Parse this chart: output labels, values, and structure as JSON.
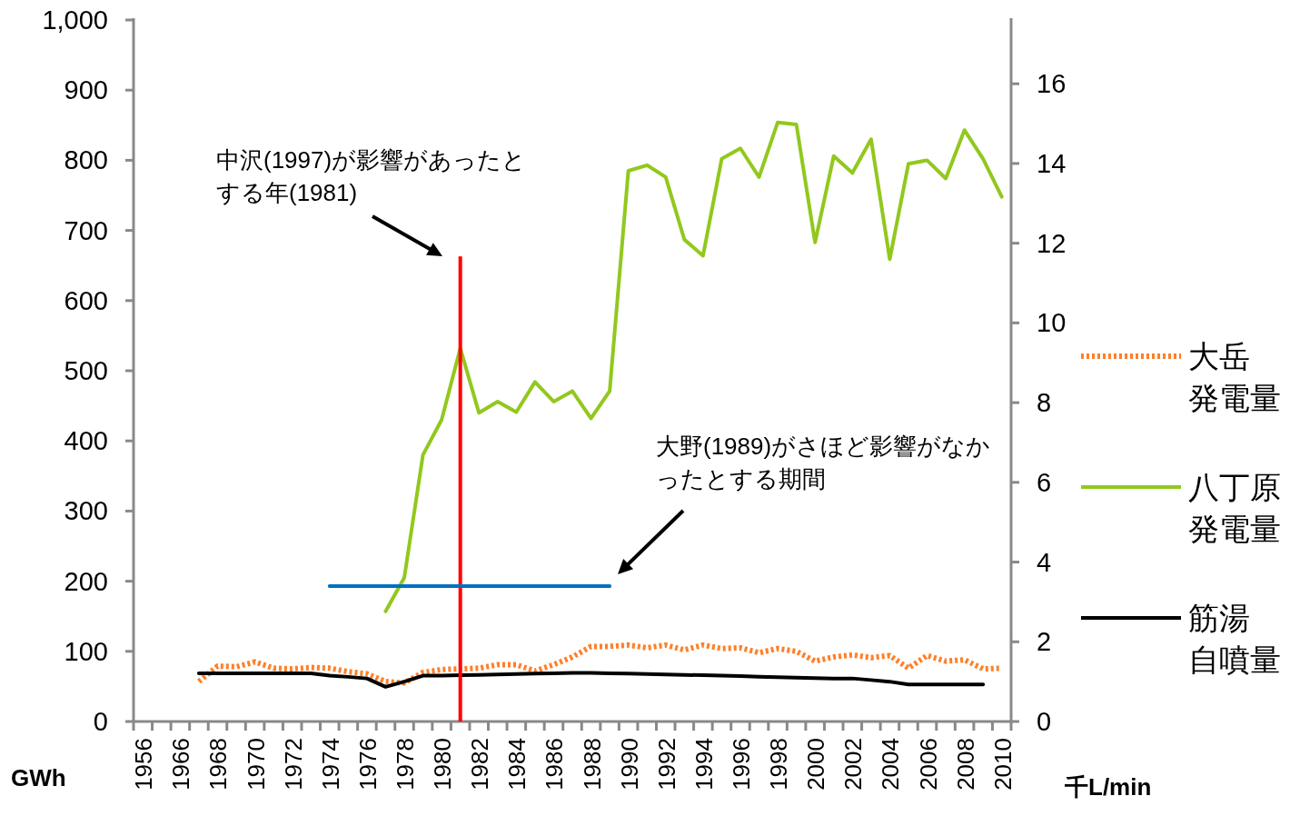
{
  "chart_data": {
    "type": "line",
    "categories": [
      "1956",
      null,
      "1966",
      null,
      "1968",
      null,
      "1970",
      null,
      "1972",
      null,
      "1974",
      null,
      "1976",
      null,
      "1978",
      null,
      "1980",
      null,
      "1982",
      null,
      "1984",
      null,
      "1986",
      null,
      "1988",
      null,
      "1990",
      null,
      "1992",
      null,
      "1994",
      null,
      "1996",
      null,
      "1998",
      null,
      "2000",
      null,
      "2002",
      null,
      "2004",
      null,
      "2006",
      null,
      "2008",
      null,
      "2010"
    ],
    "ylabel": "GWh",
    "y2label": "千L/min",
    "ylim": [
      0,
      1000
    ],
    "yticks": [
      {
        "value": 0,
        "label": "0"
      },
      {
        "value": 100,
        "label": "100"
      },
      {
        "value": 200,
        "label": "200"
      },
      {
        "value": 300,
        "label": "300"
      },
      {
        "value": 400,
        "label": "400"
      },
      {
        "value": 500,
        "label": "500"
      },
      {
        "value": 600,
        "label": "600"
      },
      {
        "value": 700,
        "label": "700"
      },
      {
        "value": 800,
        "label": "800"
      },
      {
        "value": 900,
        "label": "900"
      },
      {
        "value": 1000,
        "label": "1,000"
      }
    ],
    "y2lim": [
      0,
      17.6
    ],
    "y2ticks": [
      0,
      2,
      4,
      6,
      8,
      10,
      12,
      14,
      16
    ],
    "grid": false,
    "legend": "right",
    "marker": "none",
    "series": [
      {
        "name": "大岳発電量",
        "line_style": "dotted",
        "color": "#ff7f27",
        "values": [
          null,
          null,
          null,
          57,
          79,
          78,
          85,
          76,
          75,
          77,
          76,
          71,
          68,
          57,
          55,
          70,
          74,
          75,
          76,
          81,
          81,
          72,
          81,
          92,
          107,
          107,
          109,
          105,
          109,
          102,
          109,
          104,
          105,
          98,
          104,
          100,
          86,
          92,
          95,
          91,
          94,
          76,
          94,
          86,
          88,
          75,
          76
        ]
      },
      {
        "name": "八丁原発電量",
        "line_style": "solid",
        "color": "#92c81e",
        "values": [
          null,
          null,
          null,
          null,
          null,
          null,
          null,
          null,
          null,
          null,
          null,
          null,
          null,
          157,
          205,
          380,
          430,
          532,
          440,
          456,
          441,
          484,
          456,
          471,
          432,
          471,
          785,
          793,
          776,
          687,
          664,
          802,
          817,
          776,
          854,
          851,
          683,
          806,
          782,
          830,
          659,
          795,
          800,
          774,
          843,
          802,
          748
        ]
      },
      {
        "name": "筋湯自噴量",
        "line_style": "solid",
        "axis": "y2",
        "color": "#000000",
        "values": [
          null,
          null,
          null,
          1.21,
          1.21,
          1.21,
          1.21,
          1.21,
          1.21,
          1.21,
          1.15,
          1.12,
          1.08,
          0.87,
          1.0,
          1.15,
          1.15,
          1.16,
          1.17,
          1.18,
          1.19,
          1.2,
          1.21,
          1.22,
          1.22,
          1.21,
          1.2,
          1.19,
          1.18,
          1.17,
          1.16,
          1.15,
          1.14,
          1.12,
          1.11,
          1.1,
          1.09,
          1.08,
          1.08,
          1.04,
          1.0,
          0.93,
          0.93,
          0.93,
          0.93,
          0.93,
          null
        ]
      },
      {
        "type": "bar",
        "color": "#ff0000",
        "values": [
          null,
          null,
          null,
          null,
          null,
          null,
          null,
          null,
          null,
          null,
          null,
          null,
          null,
          null,
          null,
          null,
          null,
          663,
          null,
          null,
          null,
          null,
          null,
          null,
          null,
          null,
          null,
          null,
          null,
          null,
          null,
          null,
          null,
          null,
          null,
          null,
          null,
          null,
          null,
          null,
          null,
          null,
          null,
          null,
          null,
          null,
          null
        ]
      },
      {
        "line_style": "solid",
        "color": "#0070c0",
        "values": [
          null,
          null,
          null,
          null,
          null,
          null,
          null,
          null,
          null,
          null,
          193,
          193,
          193,
          193,
          193,
          193,
          193,
          193,
          193,
          193,
          193,
          193,
          193,
          193,
          193,
          193,
          null,
          null,
          null,
          null,
          null,
          null,
          null,
          null,
          null,
          null,
          null,
          null,
          null,
          null,
          null,
          null,
          null,
          null,
          null,
          null,
          null
        ]
      }
    ],
    "annotations": [
      "中沢(1997)が影響があったとする年(1981)",
      "大野(1989)がさほど影響がなかったとする期間"
    ]
  }
}
